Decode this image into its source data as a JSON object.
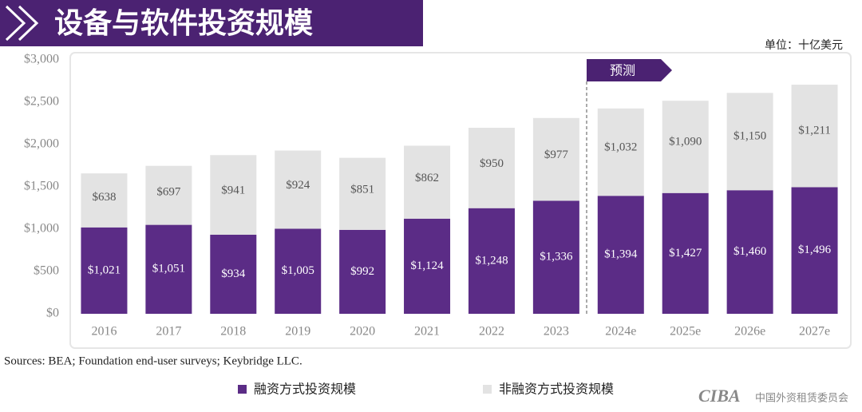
{
  "chart_data": {
    "type": "stacked_bar",
    "title": "设备与软件投资规模",
    "unit_label": "单位：十亿美元",
    "forecast_label": "预测",
    "source": "Sources: BEA; Foundation end-user surveys; Keybridge LLC.",
    "logo_mark": "CIBA",
    "logo_text": "中国外资租赁委员会",
    "categories": [
      "2016",
      "2017",
      "2018",
      "2019",
      "2020",
      "2021",
      "2022",
      "2023",
      "2024e",
      "2025e",
      "2026e",
      "2027e"
    ],
    "series": [
      {
        "name": "融资方式投资规模",
        "color": "#5b2c86",
        "values": [
          1021,
          1051,
          934,
          1005,
          992,
          1124,
          1248,
          1336,
          1394,
          1427,
          1460,
          1496
        ],
        "value_labels": [
          "$1,021",
          "$1,051",
          "$934",
          "$1,005",
          "$992",
          "$1,124",
          "$1,248",
          "$1,336",
          "$1,394",
          "$1,427",
          "$1,460",
          "$1,496"
        ]
      },
      {
        "name": "非融资方式投资规模",
        "color": "#e3e3e3",
        "values": [
          638,
          697,
          941,
          924,
          851,
          862,
          950,
          977,
          1032,
          1090,
          1150,
          1211
        ],
        "value_labels": [
          "$638",
          "$697",
          "$941",
          "$924",
          "$851",
          "$862",
          "$950",
          "$977",
          "$1,032",
          "$1,090",
          "$1,150",
          "$1,211"
        ]
      }
    ],
    "ylim": [
      0,
      3000
    ],
    "yticks": [
      {
        "value": 0,
        "label": "$0"
      },
      {
        "value": 500,
        "label": "$500"
      },
      {
        "value": 1000,
        "label": "$1,000"
      },
      {
        "value": 1500,
        "label": "$1,500"
      },
      {
        "value": 2000,
        "label": "$2,000"
      },
      {
        "value": 2500,
        "label": "$2,500"
      },
      {
        "value": 3000,
        "label": "$3,000"
      }
    ]
  }
}
